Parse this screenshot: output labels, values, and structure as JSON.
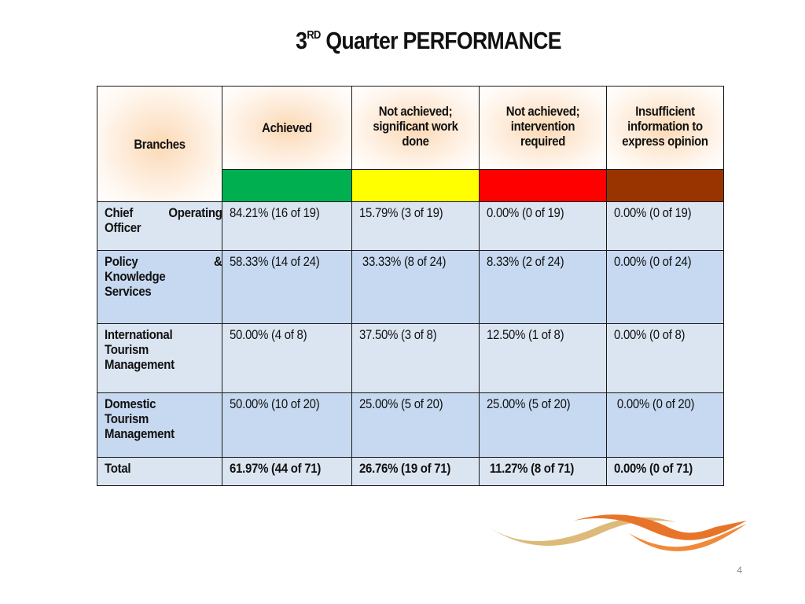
{
  "slide": {
    "title_number": "3",
    "title_superscript": "RD",
    "title_rest": "Quarter PERFORMANCE",
    "page_number": "4"
  },
  "table": {
    "headers": {
      "branches": "Branches",
      "achieved": "Achieved",
      "not_achieved_significant": "Not  achieved; significant work done",
      "not_achieved_intervention": "Not achieved; intervention required",
      "insufficient": "Insufficient information  to express opinion"
    },
    "legend_colors": {
      "achieved": "#00b050",
      "not_achieved_significant": "#ffff00",
      "not_achieved_intervention": "#ff0000",
      "insufficient": "#993300"
    },
    "rows": [
      {
        "branch_line1_left": "Chief",
        "branch_line1_right": "Operating",
        "branch_line2": "Officer",
        "achieved": "84.21% (16 of 19)",
        "significant": "15.79% (3 of 19)",
        "intervention": "0.00% (0 of 19)",
        "insufficient": "0.00% (0 of 19)"
      },
      {
        "branch_line1_left": "Policy",
        "branch_line1_right": "&",
        "branch_line2": "Knowledge",
        "branch_line3": "Services",
        "achieved": "58.33% (14 of 24)",
        "significant": " 33.33% (8 of 24)",
        "intervention": "8.33% (2 of 24)",
        "insufficient": "0.00% (0 of 24)"
      },
      {
        "branch_line1": "International",
        "branch_line2": "Tourism",
        "branch_line3": "Management",
        "achieved": "50.00% (4 of 8)",
        "significant": "37.50% (3 of 8)",
        "intervention": "12.50% (1 of 8)",
        "insufficient": "0.00% (0 of 8)"
      },
      {
        "branch_line1": "Domestic",
        "branch_line2": "Tourism",
        "branch_line3": "Management",
        "achieved": "50.00% (10 of 20)",
        "significant": "25.00% (5 of 20)",
        "intervention": "25.00% (5 of 20)",
        "insufficient": " 0.00% (0 of 20)"
      },
      {
        "branch_line1": "Total",
        "achieved": "61.97% (44 of 71)",
        "significant": "26.76% (19 of 71)",
        "intervention": " 11.27% (8 of 71)",
        "insufficient": "0.00% (0 of 71)"
      }
    ]
  },
  "logo": {
    "colors": [
      "#d9b36a",
      "#e8742a",
      "#f08a3a"
    ]
  }
}
